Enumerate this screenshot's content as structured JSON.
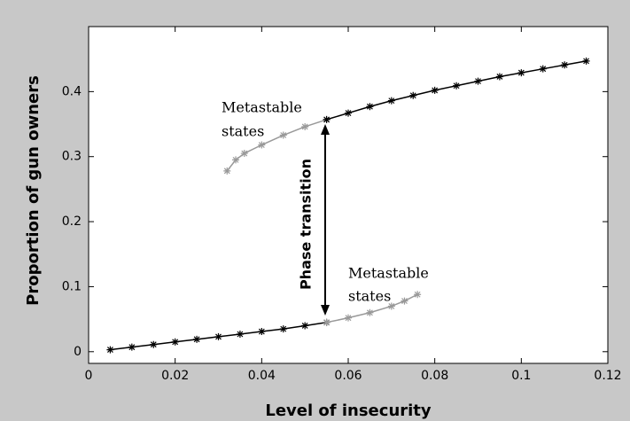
{
  "chart_data": {
    "type": "scatter",
    "xlabel": "Level of insecurity",
    "ylabel": "Proportion of gun owners",
    "annotations": [
      [
        "Metastable",
        "states"
      ],
      [
        "Metastable",
        "states"
      ],
      [
        "Phase transition"
      ]
    ],
    "xlim": [
      0,
      0.12
    ],
    "xticks": [
      0,
      0.02,
      0.04,
      0.06,
      0.08,
      0.1,
      0.12
    ],
    "ylim": [
      -0.018,
      0.5
    ],
    "yticks": [
      0,
      0.1,
      0.2,
      0.3,
      0.4
    ],
    "series": [
      {
        "color": "#000000",
        "x": [
          0.005,
          0.01,
          0.015,
          0.02,
          0.025,
          0.03,
          0.035,
          0.04,
          0.045,
          0.05,
          0.055
        ],
        "values": [
          0.003,
          0.007,
          0.011,
          0.015,
          0.019,
          0.023,
          0.027,
          0.031,
          0.035,
          0.04,
          0.045
        ]
      },
      {
        "color": "#999999",
        "x": [
          0.055,
          0.06,
          0.065,
          0.07,
          0.073,
          0.076
        ],
        "values": [
          0.045,
          0.052,
          0.06,
          0.07,
          0.078,
          0.088
        ]
      },
      {
        "color": "#999999",
        "x": [
          0.032,
          0.034,
          0.036,
          0.04,
          0.045,
          0.05,
          0.055
        ],
        "values": [
          0.278,
          0.295,
          0.305,
          0.318,
          0.333,
          0.346,
          0.357
        ]
      },
      {
        "color": "#000000",
        "x": [
          0.055,
          0.06,
          0.065,
          0.07,
          0.075,
          0.08,
          0.085,
          0.09,
          0.095,
          0.1,
          0.105,
          0.11,
          0.115
        ],
        "values": [
          0.357,
          0.367,
          0.377,
          0.386,
          0.394,
          0.402,
          0.409,
          0.416,
          0.423,
          0.429,
          0.435,
          0.441,
          0.447
        ]
      }
    ]
  }
}
